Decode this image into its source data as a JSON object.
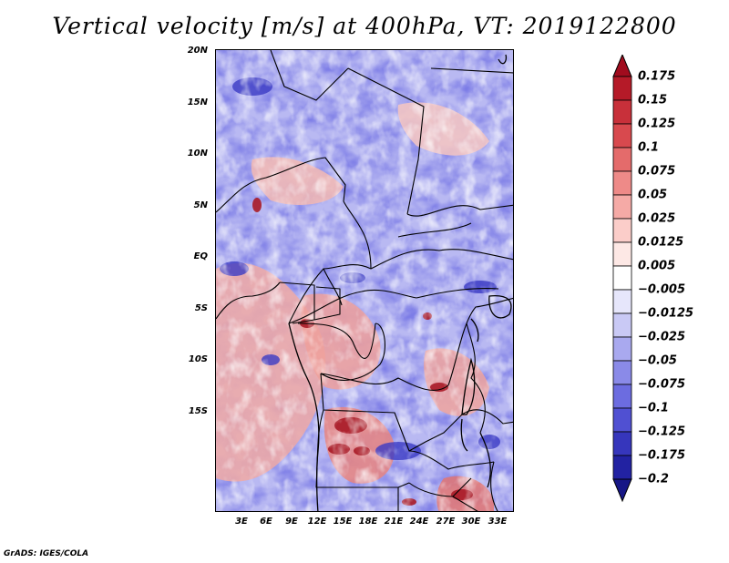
{
  "title": "Vertical velocity [m/s] at 400hPa, VT: 2019122800",
  "credit": "GrADS: IGES/COLA",
  "map": {
    "region": "Central Africa",
    "lat_labels": [
      "20N",
      "15N",
      "10N",
      "5N",
      "EQ",
      "5S",
      "10S",
      "15S"
    ],
    "lon_labels": [
      "3E",
      "6E",
      "9E",
      "12E",
      "15E",
      "18E",
      "21E",
      "24E",
      "27E",
      "30E",
      "33E"
    ]
  },
  "colorbar": {
    "levels": [
      "0.175",
      "0.15",
      "0.125",
      "0.1",
      "0.075",
      "0.05",
      "0.025",
      "0.0125",
      "0.005",
      "−0.005",
      "−0.0125",
      "−0.025",
      "−0.05",
      "−0.075",
      "−0.1",
      "−0.125",
      "−0.175",
      "−0.2"
    ],
    "colors": [
      "#a10c1e",
      "#b51a28",
      "#c8303a",
      "#d8494e",
      "#e46b6b",
      "#ee8a88",
      "#f5aaa6",
      "#fbcdc9",
      "#fde8e5",
      "#ffffff",
      "#e6e6fb",
      "#c9c9f5",
      "#a9a9ef",
      "#8a8ae8",
      "#6c6ce0",
      "#5050d2",
      "#3636bc",
      "#2222a2",
      "#161686"
    ]
  }
}
